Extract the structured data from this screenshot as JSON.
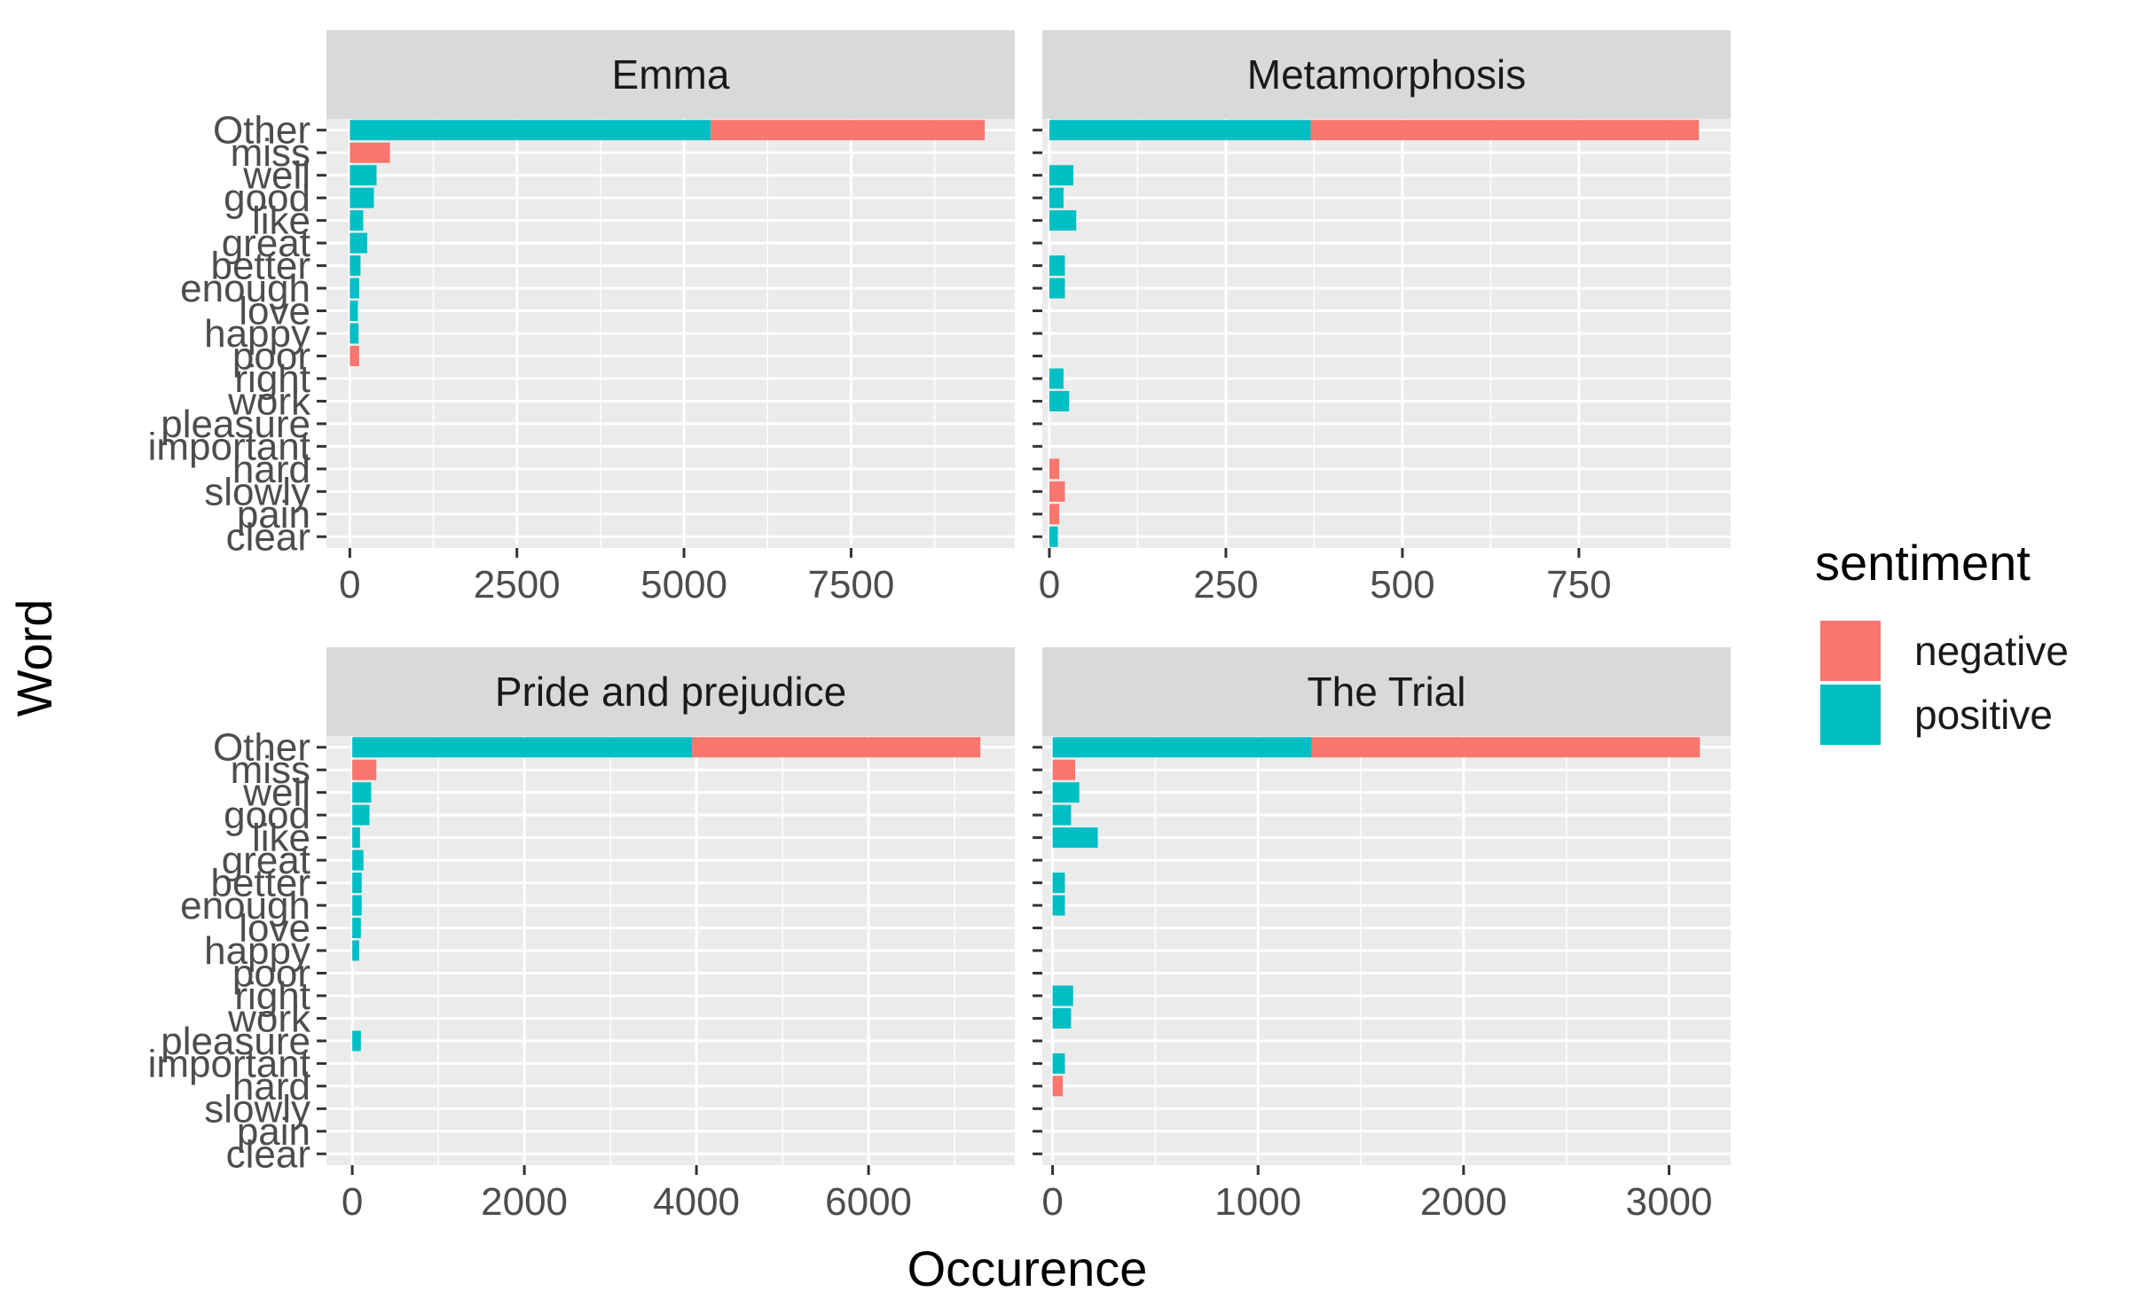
{
  "chart_data": {
    "type": "bar",
    "orientation": "horizontal",
    "stacked": true,
    "xlabel": "Occurence",
    "ylabel": "Word",
    "legend": {
      "title": "sentiment",
      "position": "right",
      "entries": [
        {
          "name": "negative",
          "color": "#F8766D"
        },
        {
          "name": "positive",
          "color": "#00BFC4"
        }
      ]
    },
    "categories": [
      "Other",
      "miss",
      "well",
      "good",
      "like",
      "great",
      "better",
      "enough",
      "love",
      "happy",
      "poor",
      "right",
      "work",
      "pleasure",
      "important",
      "hard",
      "slowly",
      "pain",
      "clear"
    ],
    "panels": [
      {
        "title": "Emma",
        "xlim": [
          -350,
          9950
        ],
        "xticks": [
          0,
          2500,
          5000,
          7500
        ],
        "xtick_labels": [
          "0",
          "2500",
          "5000",
          "7500"
        ],
        "series": [
          {
            "name": "positive",
            "values": [
              5400,
              0,
              400,
              360,
              200,
              260,
              160,
              140,
              120,
              130,
              0,
              0,
              0,
              0,
              0,
              0,
              0,
              0,
              0
            ]
          },
          {
            "name": "negative",
            "values": [
              4100,
              600,
              0,
              0,
              0,
              0,
              0,
              0,
              0,
              0,
              140,
              0,
              0,
              0,
              0,
              0,
              0,
              0,
              0
            ]
          }
        ]
      },
      {
        "title": "Metamorphosis",
        "xlim": [
          -10,
          965
        ],
        "xticks": [
          0,
          250,
          500,
          750
        ],
        "xtick_labels": [
          "0",
          "250",
          "500",
          "750"
        ],
        "series": [
          {
            "name": "positive",
            "values": [
              370,
              0,
              34,
              20,
              38,
              0,
              22,
              22,
              0,
              0,
              0,
              20,
              28,
              0,
              0,
              0,
              0,
              0,
              12
            ]
          },
          {
            "name": "negative",
            "values": [
              550,
              0,
              0,
              0,
              0,
              0,
              0,
              0,
              0,
              0,
              0,
              0,
              0,
              0,
              0,
              14,
              22,
              14,
              0
            ]
          }
        ]
      },
      {
        "title": "Pride and prejudice",
        "xlim": [
          -300,
          7700
        ],
        "xticks": [
          0,
          2000,
          4000,
          6000
        ],
        "xtick_labels": [
          "0",
          "2000",
          "4000",
          "6000"
        ],
        "series": [
          {
            "name": "positive",
            "values": [
              3950,
              0,
              220,
              200,
              90,
              130,
              110,
              110,
              100,
              80,
              0,
              0,
              0,
              100,
              0,
              0,
              0,
              0,
              0
            ]
          },
          {
            "name": "negative",
            "values": [
              3350,
              280,
              0,
              0,
              0,
              0,
              0,
              0,
              0,
              0,
              0,
              0,
              0,
              0,
              0,
              0,
              0,
              0,
              0
            ]
          }
        ]
      },
      {
        "title": "The Trial",
        "xlim": [
          -50,
          3300
        ],
        "xticks": [
          0,
          1000,
          2000,
          3000
        ],
        "xtick_labels": [
          "0",
          "1000",
          "2000",
          "3000"
        ],
        "series": [
          {
            "name": "positive",
            "values": [
              1260,
              0,
              130,
              90,
              220,
              0,
              60,
              60,
              0,
              0,
              0,
              100,
              90,
              0,
              60,
              0,
              0,
              0,
              0
            ]
          },
          {
            "name": "negative",
            "values": [
              1890,
              110,
              0,
              0,
              0,
              0,
              0,
              0,
              0,
              0,
              0,
              0,
              0,
              0,
              0,
              50,
              0,
              0,
              0
            ]
          }
        ]
      }
    ]
  }
}
